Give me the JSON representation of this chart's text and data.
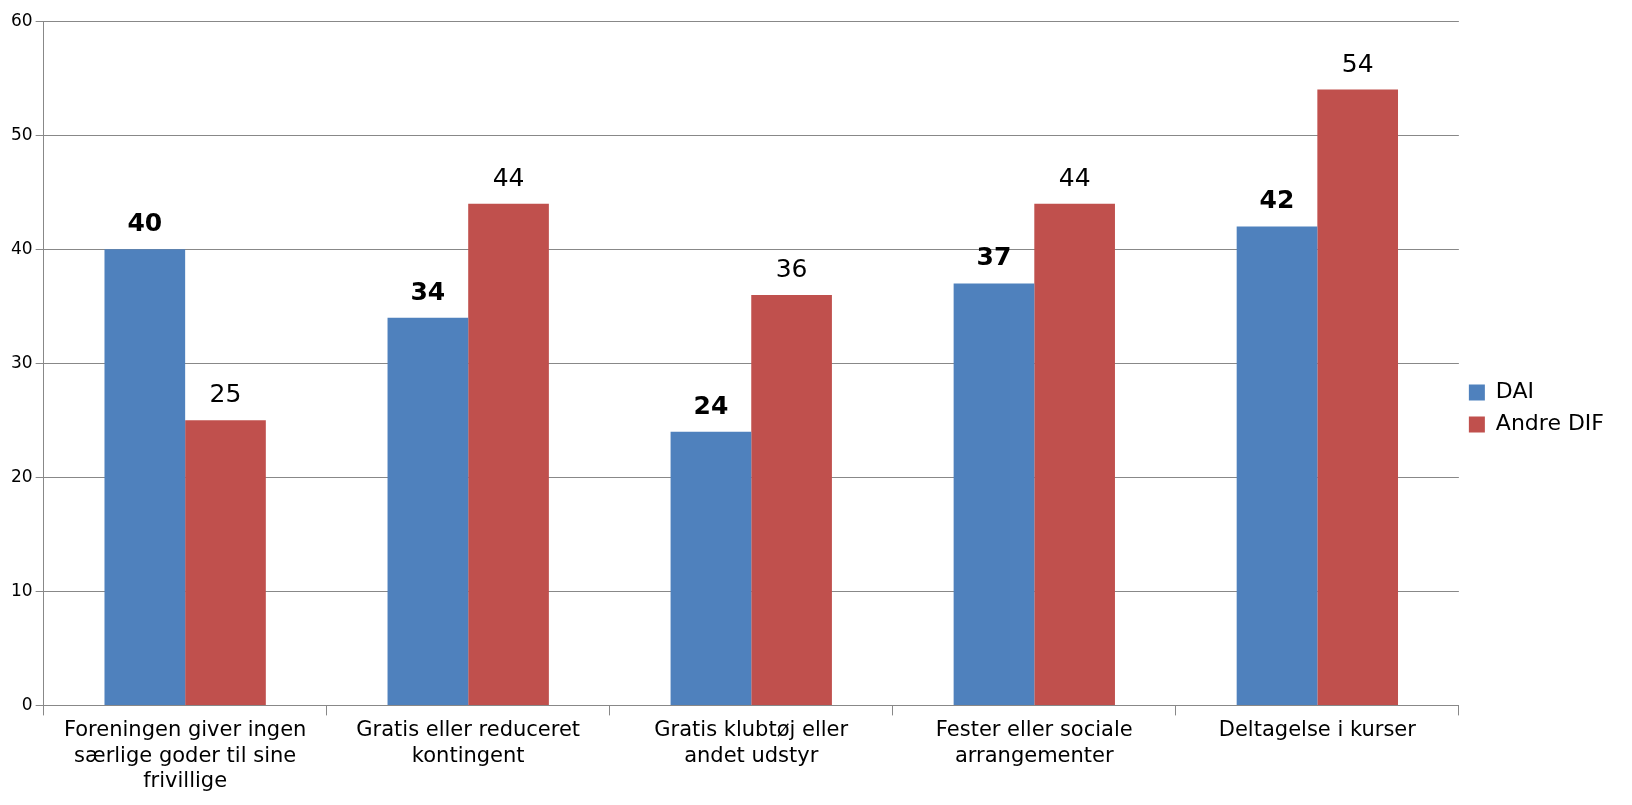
{
  "chart_data": {
    "type": "bar",
    "categories": [
      "Foreningen giver ingen særlige goder til sine frivillige",
      "Gratis eller reduceret kontingent",
      "Gratis klubtøj eller andet udstyr",
      "Fester eller sociale arrangementer",
      "Deltagelse i kurser"
    ],
    "series": [
      {
        "name": "DAI",
        "color": "#4f81bd",
        "values": [
          40,
          34,
          24,
          37,
          42
        ]
      },
      {
        "name": "Andre DIF",
        "color": "#c0504d",
        "values": [
          25,
          44,
          36,
          44,
          54
        ]
      }
    ],
    "ylim": [
      0,
      60
    ],
    "yticks": [
      0,
      10,
      20,
      30,
      40,
      50,
      60
    ],
    "grid": "y",
    "legend": "right",
    "data_labels": true
  }
}
